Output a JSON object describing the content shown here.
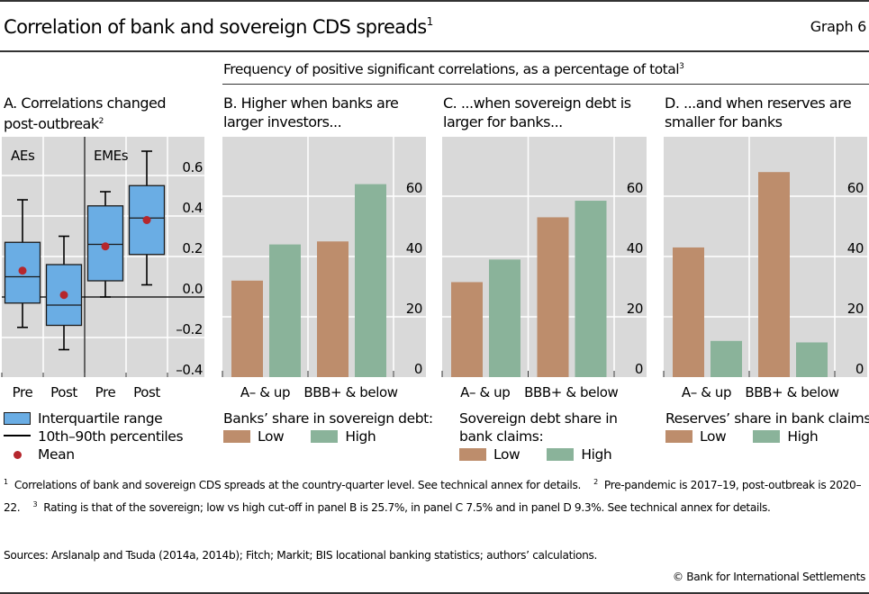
{
  "header": {
    "title": "Correlation of bank and sovereign CDS spreads",
    "title_note": "1",
    "graph_number": "Graph 6",
    "subtitle": "Frequency of positive significant correlations, as a percentage of total",
    "subtitle_note": "3"
  },
  "colors": {
    "plot_bg": "#d9d9d9",
    "box_fill": "#6aade4",
    "mean_dot": "#b5272d",
    "low": "#bd8d6c",
    "high": "#8ab39a"
  },
  "legends": {
    "A": {
      "iqr": "Interquartile range",
      "whisker": "10th–90th percentiles",
      "mean": "Mean"
    },
    "B": {
      "title": "Banks’ share in sovereign debt:",
      "low": "Low",
      "high": "High"
    },
    "C": {
      "title": "Sovereign debt share in bank claims:",
      "low": "Low",
      "high": "High"
    },
    "D": {
      "title": "Reserves’ share in bank claims:",
      "low": "Low",
      "high": "High"
    }
  },
  "chart_data": [
    {
      "id": "A",
      "type": "box",
      "title": "A. Correlations changed post-outbreak",
      "title_note": "2",
      "groups": [
        "AEs",
        "EMEs"
      ],
      "categories": [
        "Pre",
        "Post",
        "Pre",
        "Post"
      ],
      "yticks": [
        0.6,
        0.4,
        0.2,
        0.0,
        -0.2,
        -0.4
      ],
      "ytick_labels": [
        "0.6",
        "0.4",
        "0.2",
        "0.0",
        "–0.2",
        "–0.4"
      ],
      "ylim": [
        -0.4,
        0.8
      ],
      "boxes": [
        {
          "group": "AEs",
          "label": "Pre",
          "p10": -0.15,
          "q1": -0.03,
          "median": 0.1,
          "q3": 0.27,
          "p90": 0.48,
          "mean": 0.13
        },
        {
          "group": "AEs",
          "label": "Post",
          "p10": -0.26,
          "q1": -0.14,
          "median": -0.04,
          "q3": 0.16,
          "p90": 0.3,
          "mean": 0.01
        },
        {
          "group": "EMEs",
          "label": "Pre",
          "p10": 0.0,
          "q1": 0.08,
          "median": 0.26,
          "q3": 0.45,
          "p90": 0.52,
          "mean": 0.25
        },
        {
          "group": "EMEs",
          "label": "Post",
          "p10": 0.06,
          "q1": 0.21,
          "median": 0.39,
          "q3": 0.55,
          "p90": 0.72,
          "mean": 0.38
        }
      ]
    },
    {
      "id": "B",
      "type": "bar",
      "title": "B. Higher when banks are larger investors...",
      "categories": [
        "A– & up",
        "BBB+ & below"
      ],
      "series": [
        {
          "name": "Low",
          "values": [
            32,
            45
          ]
        },
        {
          "name": "High",
          "values": [
            44,
            64
          ]
        }
      ],
      "yticks": [
        0,
        20,
        40,
        60
      ],
      "ylim": [
        0,
        70
      ]
    },
    {
      "id": "C",
      "type": "bar",
      "title": "C. ...when sovereign debt is larger for banks...",
      "categories": [
        "A– & up",
        "BBB+ & below"
      ],
      "series": [
        {
          "name": "Low",
          "values": [
            31.5,
            53
          ]
        },
        {
          "name": "High",
          "values": [
            39,
            58.5
          ]
        }
      ],
      "yticks": [
        0,
        20,
        40,
        60
      ],
      "ylim": [
        0,
        70
      ]
    },
    {
      "id": "D",
      "type": "bar",
      "title": "D. ...and when reserves are smaller for banks",
      "categories": [
        "A– & up",
        "BBB+ & below"
      ],
      "series": [
        {
          "name": "Low",
          "values": [
            43,
            68
          ]
        },
        {
          "name": "High",
          "values": [
            12,
            11.5
          ]
        }
      ],
      "yticks": [
        0,
        20,
        40,
        60
      ],
      "ylim": [
        0,
        70
      ]
    }
  ],
  "footnotes": {
    "n1": "1",
    "t1": "Correlations of bank and sovereign CDS spreads at the country-quarter level. See technical annex for details.",
    "n2": "2",
    "t2": "Pre-pandemic is 2017–19, post-outbreak is 2020–22.",
    "n3": "3",
    "t3": "Rating is that of the sovereign; low vs high cut-off in panel B is 25.7%, in panel C 7.5% and in panel D 9.3%. See technical annex for details.",
    "sources": "Sources: Arslanalp and Tsuda (2014a, 2014b); Fitch; Markit; BIS locational banking statistics; authors’ calculations.",
    "copyright": "© Bank for International Settlements"
  }
}
